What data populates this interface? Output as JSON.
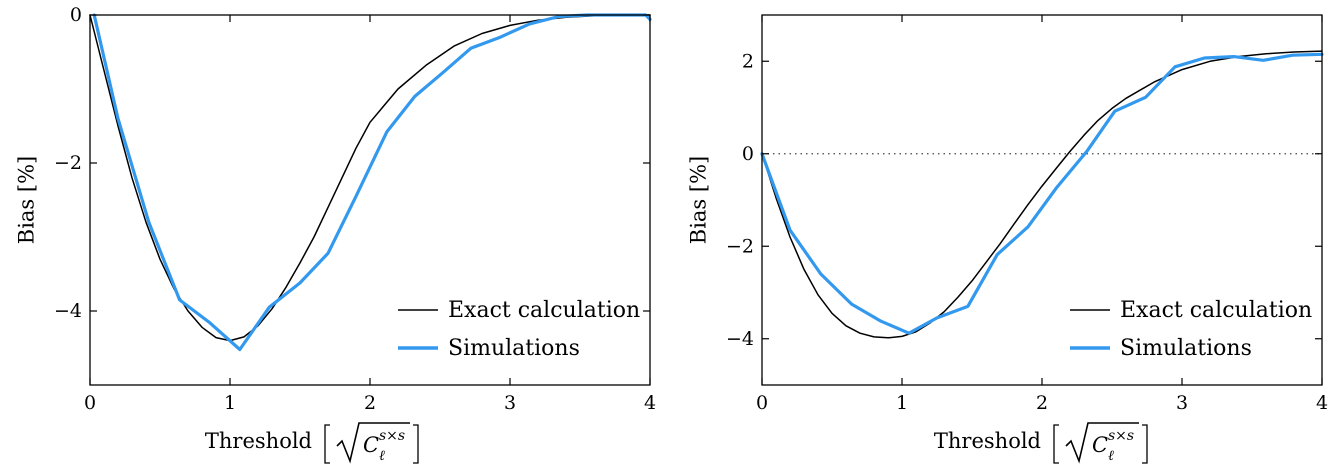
{
  "chart_data": [
    {
      "type": "line",
      "xlabel": "Threshold",
      "xlabel_unit": {
        "radicand": "C",
        "superscript": "s×s",
        "subscript": "ℓ"
      },
      "ylabel": "Bias [%]",
      "xlim": [
        0,
        4
      ],
      "ylim": [
        -5,
        0
      ],
      "xticks": [
        0,
        1,
        2,
        3,
        4
      ],
      "yticks": [
        -4,
        -2,
        0
      ],
      "ytick_labels": [
        "−4",
        "−2",
        "0"
      ],
      "zero_line": false,
      "legend_position": "lower-right",
      "series": [
        {
          "name": "Exact calculation",
          "color": "#000000",
          "x": [
            0,
            0.1,
            0.2,
            0.3,
            0.4,
            0.5,
            0.6,
            0.7,
            0.8,
            0.9,
            1.0,
            1.1,
            1.2,
            1.3,
            1.4,
            1.5,
            1.6,
            1.7,
            1.8,
            1.9,
            2.0,
            2.2,
            2.4,
            2.6,
            2.8,
            3.0,
            3.2,
            3.4,
            3.6,
            3.8,
            4.0
          ],
          "y": [
            0,
            -0.75,
            -1.5,
            -2.2,
            -2.8,
            -3.3,
            -3.7,
            -4.0,
            -4.22,
            -4.36,
            -4.4,
            -4.35,
            -4.2,
            -3.97,
            -3.68,
            -3.35,
            -3.0,
            -2.6,
            -2.2,
            -1.8,
            -1.45,
            -1.0,
            -0.68,
            -0.42,
            -0.25,
            -0.14,
            -0.07,
            -0.03,
            -0.01,
            0.0,
            0.0
          ]
        },
        {
          "name": "Simulations",
          "color": "#3399ee",
          "x": [
            0.03,
            0.2,
            0.42,
            0.64,
            0.85,
            1.07,
            1.28,
            1.5,
            1.7,
            1.9,
            2.12,
            2.32,
            2.52,
            2.72,
            2.93,
            3.14,
            3.35,
            3.55,
            3.76,
            3.97,
            4.0
          ],
          "y": [
            0,
            -1.4,
            -2.8,
            -3.85,
            -4.15,
            -4.52,
            -3.95,
            -3.62,
            -3.22,
            -2.45,
            -1.58,
            -1.1,
            -0.78,
            -0.45,
            -0.3,
            -0.12,
            -0.02,
            0.0,
            0.0,
            0.0,
            -0.06
          ]
        }
      ]
    },
    {
      "type": "line",
      "xlabel": "Threshold",
      "xlabel_unit": {
        "radicand": "C",
        "superscript": "s×s",
        "subscript": "ℓ"
      },
      "ylabel": "Bias [%]",
      "xlim": [
        0,
        4
      ],
      "ylim": [
        -5,
        3
      ],
      "xticks": [
        0,
        1,
        2,
        3,
        4
      ],
      "yticks": [
        -4,
        -2,
        0,
        2
      ],
      "ytick_labels": [
        "−4",
        "−2",
        "0",
        "2"
      ],
      "zero_line": true,
      "legend_position": "lower-right",
      "series": [
        {
          "name": "Exact calculation",
          "color": "#000000",
          "x": [
            0,
            0.1,
            0.2,
            0.3,
            0.4,
            0.5,
            0.6,
            0.7,
            0.8,
            0.9,
            1.0,
            1.1,
            1.2,
            1.3,
            1.4,
            1.5,
            1.6,
            1.7,
            1.8,
            1.9,
            2.0,
            2.1,
            2.2,
            2.3,
            2.4,
            2.5,
            2.6,
            2.8,
            3.0,
            3.2,
            3.4,
            3.6,
            3.8,
            4.0
          ],
          "y": [
            0,
            -0.95,
            -1.8,
            -2.5,
            -3.05,
            -3.45,
            -3.72,
            -3.88,
            -3.96,
            -3.98,
            -3.95,
            -3.85,
            -3.66,
            -3.42,
            -3.1,
            -2.75,
            -2.35,
            -1.95,
            -1.52,
            -1.1,
            -0.7,
            -0.32,
            0.05,
            0.4,
            0.72,
            0.98,
            1.2,
            1.55,
            1.82,
            2.0,
            2.1,
            2.16,
            2.2,
            2.22
          ]
        },
        {
          "name": "Simulations",
          "color": "#3399ee",
          "x": [
            0,
            0.2,
            0.42,
            0.64,
            0.85,
            1.05,
            1.25,
            1.47,
            1.68,
            1.9,
            2.1,
            2.32,
            2.52,
            2.74,
            2.95,
            3.16,
            3.37,
            3.58,
            3.79,
            4.0
          ],
          "y": [
            0,
            -1.65,
            -2.6,
            -3.25,
            -3.62,
            -3.88,
            -3.55,
            -3.3,
            -2.18,
            -1.58,
            -0.75,
            0.05,
            0.92,
            1.22,
            1.88,
            2.07,
            2.1,
            2.02,
            2.13,
            2.15
          ]
        }
      ]
    }
  ]
}
